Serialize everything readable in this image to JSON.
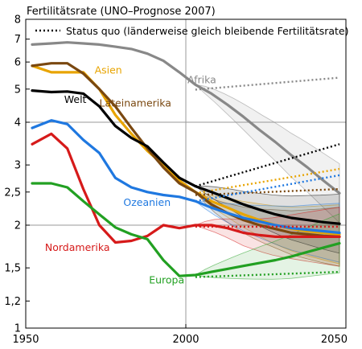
{
  "chart_data": {
    "type": "line",
    "title": "Fertilitätsrate (UNO–Prognose 2007)",
    "legend": {
      "status_quo": "Status quo (länderweise gleich bleibende Fertilitätsrate)",
      "position": "top-left"
    },
    "scale": {
      "y": "log"
    },
    "xlim": [
      1950,
      2050
    ],
    "ylim": [
      1,
      8
    ],
    "x_ticks": [
      "1950",
      "2000",
      "2050"
    ],
    "y_ticks": [
      {
        "v": 1,
        "label": "1"
      },
      {
        "v": 1.2,
        "label": "1,2"
      },
      {
        "v": 1.5,
        "label": "1,5"
      },
      {
        "v": 2,
        "label": "2"
      },
      {
        "v": 2.5,
        "label": "2,5"
      },
      {
        "v": 3,
        "label": "3"
      },
      {
        "v": 4,
        "label": "4"
      },
      {
        "v": 5,
        "label": "5"
      },
      {
        "v": 6,
        "label": "6"
      },
      {
        "v": 7,
        "label": "7"
      },
      {
        "v": 8,
        "label": "8"
      }
    ],
    "grid": {
      "major_x": [
        2000
      ],
      "major_y": [
        2,
        4
      ]
    },
    "series": [
      {
        "name": "Afrika",
        "color": "#888888",
        "label_pos": [
          2000.5,
          5.2
        ],
        "x": [
          1952,
          1958,
          1963,
          1968,
          1973,
          1978,
          1983,
          1988,
          1993,
          1998,
          2003,
          2008,
          2013,
          2018,
          2023,
          2028,
          2033,
          2038,
          2043,
          2048
        ],
        "y": [
          6.75,
          6.8,
          6.85,
          6.8,
          6.75,
          6.65,
          6.55,
          6.35,
          6.05,
          5.6,
          5.15,
          4.85,
          4.5,
          4.15,
          3.8,
          3.5,
          3.2,
          2.95,
          2.7,
          2.48
        ],
        "sq_x": [
          2003,
          2048
        ],
        "sq_y": [
          4.98,
          5.4
        ]
      },
      {
        "name": "Asien",
        "color": "#e8a400",
        "label_pos": [
          1971.5,
          5.55
        ],
        "x": [
          1952,
          1958,
          1963,
          1968,
          1973,
          1978,
          1983,
          1988,
          1993,
          1998,
          2003,
          2008,
          2013,
          2018,
          2023,
          2028,
          2033,
          2038,
          2043,
          2048
        ],
        "y": [
          5.85,
          5.6,
          5.6,
          5.6,
          5.0,
          4.2,
          3.7,
          3.3,
          3.0,
          2.7,
          2.5,
          2.35,
          2.25,
          2.15,
          2.07,
          2.0,
          1.95,
          1.92,
          1.9,
          1.88
        ],
        "sq_x": [
          2003,
          2048
        ],
        "sq_y": [
          2.48,
          2.92
        ]
      },
      {
        "name": "Lateinamerika",
        "color": "#7a4810",
        "label_pos": [
          1973,
          4.45
        ],
        "x": [
          1952,
          1958,
          1963,
          1968,
          1973,
          1978,
          1983,
          1988,
          1993,
          1998,
          2003,
          2008,
          2013,
          2018,
          2023,
          2028,
          2033,
          2038,
          2043,
          2048
        ],
        "y": [
          5.85,
          5.95,
          5.95,
          5.55,
          5.0,
          4.45,
          3.85,
          3.35,
          2.95,
          2.65,
          2.5,
          2.3,
          2.17,
          2.07,
          2.0,
          1.95,
          1.9,
          1.88,
          1.86,
          1.85
        ],
        "sq_x": [
          2003,
          2048
        ],
        "sq_y": [
          2.45,
          2.55
        ]
      },
      {
        "name": "Welt",
        "color": "#000000",
        "label_pos": [
          1962,
          4.55
        ],
        "x": [
          1952,
          1958,
          1963,
          1968,
          1973,
          1978,
          1983,
          1988,
          1993,
          1998,
          2003,
          2008,
          2013,
          2018,
          2023,
          2028,
          2033,
          2038,
          2043,
          2048
        ],
        "y": [
          4.95,
          4.9,
          4.92,
          4.85,
          4.45,
          3.9,
          3.6,
          3.4,
          3.05,
          2.75,
          2.6,
          2.5,
          2.4,
          2.3,
          2.22,
          2.15,
          2.1,
          2.07,
          2.04,
          2.02
        ],
        "sq_x": [
          2003,
          2048
        ],
        "sq_y": [
          2.6,
          3.45
        ]
      },
      {
        "name": "Ozeanien",
        "color": "#1f78e0",
        "label_pos": [
          1980.5,
          2.28
        ],
        "x": [
          1952,
          1958,
          1963,
          1968,
          1973,
          1978,
          1983,
          1988,
          1993,
          1998,
          2003,
          2008,
          2013,
          2018,
          2023,
          2028,
          2033,
          2038,
          2043,
          2048
        ],
        "y": [
          3.85,
          4.05,
          3.95,
          3.55,
          3.25,
          2.75,
          2.58,
          2.5,
          2.45,
          2.42,
          2.35,
          2.25,
          2.17,
          2.1,
          2.05,
          2.0,
          1.96,
          1.94,
          1.92,
          1.9
        ],
        "sq_x": [
          2003,
          2048
        ],
        "sq_y": [
          2.35,
          2.8
        ]
      },
      {
        "name": "Nordamerika",
        "color": "#d61a1a",
        "label_pos": [
          1956,
          1.68
        ],
        "x": [
          1952,
          1958,
          1963,
          1968,
          1973,
          1978,
          1983,
          1988,
          1993,
          1998,
          2003,
          2008,
          2013,
          2018,
          2023,
          2028,
          2033,
          2038,
          2043,
          2048
        ],
        "y": [
          3.45,
          3.7,
          3.35,
          2.55,
          2.0,
          1.78,
          1.8,
          1.86,
          2.0,
          1.96,
          2.0,
          2.0,
          1.96,
          1.9,
          1.87,
          1.85,
          1.85,
          1.85,
          1.85,
          1.85
        ],
        "sq_x": [
          2003,
          2048
        ],
        "sq_y": [
          1.98,
          1.98
        ]
      },
      {
        "name": "Europa",
        "color": "#22a022",
        "label_pos": [
          1988.5,
          1.35
        ],
        "x": [
          1952,
          1958,
          1963,
          1968,
          1973,
          1978,
          1983,
          1988,
          1993,
          1998,
          2003,
          2008,
          2013,
          2018,
          2023,
          2028,
          2033,
          2038,
          2043,
          2048
        ],
        "y": [
          2.65,
          2.65,
          2.58,
          2.35,
          2.15,
          1.97,
          1.88,
          1.82,
          1.58,
          1.42,
          1.43,
          1.46,
          1.49,
          1.52,
          1.55,
          1.58,
          1.62,
          1.67,
          1.72,
          1.77
        ],
        "sq_x": [
          2003,
          2048
        ],
        "sq_y": [
          1.41,
          1.46
        ]
      }
    ]
  }
}
